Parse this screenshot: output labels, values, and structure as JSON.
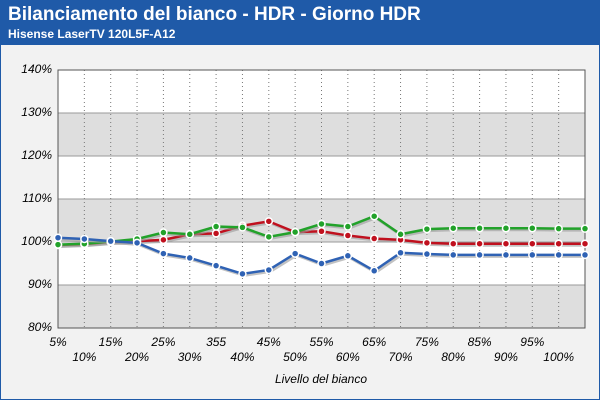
{
  "chart_data": {
    "type": "line",
    "title": "Bilanciamento del bianco - HDR - Giorno HDR",
    "subtitle": "Hisense LaserTV 120L5F-A12",
    "x_label": "Livello del bianco",
    "categories": [
      "5%",
      "10%",
      "15%",
      "20%",
      "25%",
      "30%",
      "355",
      "40%",
      "45%",
      "50%",
      "55%",
      "60%",
      "65%",
      "70%",
      "75%",
      "80%",
      "85%",
      "90%",
      "95%",
      "100%",
      null
    ],
    "ylim": [
      80,
      140
    ],
    "yticks": [
      {
        "value": 80,
        "label": "80%"
      },
      {
        "value": 90,
        "label": "90%"
      },
      {
        "value": 100,
        "label": "100%"
      },
      {
        "value": 110,
        "label": "110%"
      },
      {
        "value": 120,
        "label": "120%"
      },
      {
        "value": 130,
        "label": "130%"
      },
      {
        "value": 140,
        "label": "140%"
      }
    ],
    "grid": true,
    "series": [
      {
        "name": "Rosso",
        "color": "#c0101e",
        "values": [
          99.3,
          99.5,
          100,
          100.2,
          100.5,
          101.8,
          102,
          103.8,
          104.8,
          102.3,
          102.5,
          101.5,
          100.8,
          100.5,
          99.8,
          99.6,
          99.6,
          99.6,
          99.6,
          99.6,
          99.6
        ]
      },
      {
        "name": "Verde",
        "color": "#22a22a",
        "values": [
          99.4,
          99.6,
          100.1,
          100.7,
          102.2,
          101.8,
          103.6,
          103.4,
          101.2,
          102.3,
          104.2,
          103.6,
          106,
          101.8,
          103,
          103.2,
          103.2,
          103.2,
          103.2,
          103.1,
          103.1
        ]
      },
      {
        "name": "Blu",
        "color": "#2f62b4",
        "values": [
          101,
          100.7,
          100.2,
          99.8,
          97.3,
          96.3,
          94.5,
          92.6,
          93.5,
          97.3,
          95,
          96.8,
          93.3,
          97.5,
          97.2,
          97,
          97,
          97,
          97,
          97,
          97
        ]
      }
    ]
  }
}
